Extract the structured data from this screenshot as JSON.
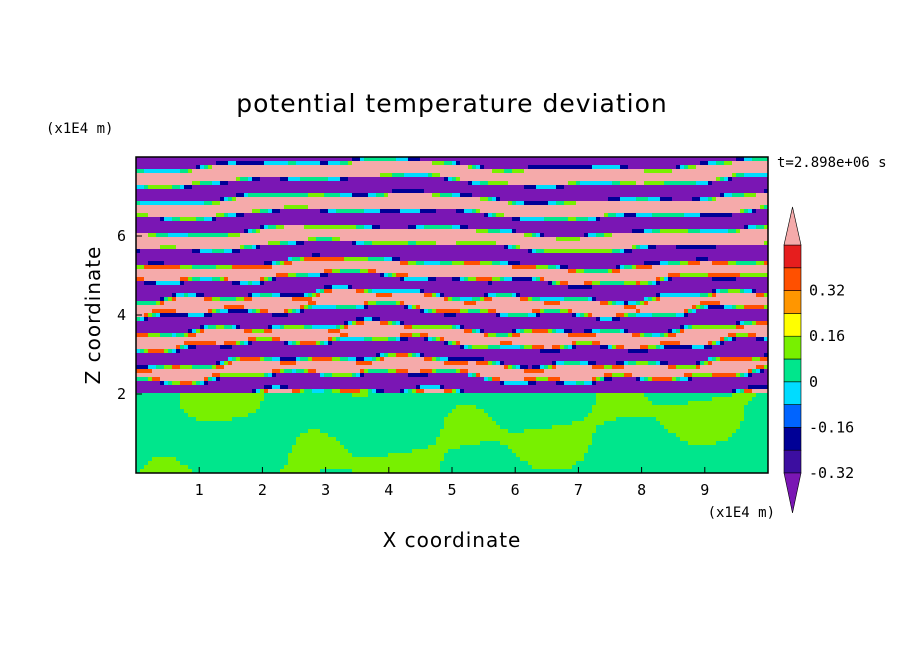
{
  "chart_data": {
    "type": "heatmap",
    "title": "potential temperature deviation",
    "xlabel": "X coordinate",
    "ylabel": "Z coordinate",
    "x_unit_label": "(x1E4 m)",
    "y_unit_label": "(x1E4 m)",
    "time_label": "t=2.898e+06 s",
    "xlim": [
      0,
      10
    ],
    "ylim": [
      0,
      8
    ],
    "x_ticks": [
      1,
      2,
      3,
      4,
      5,
      6,
      7,
      8,
      9
    ],
    "y_ticks": [
      2,
      4,
      6
    ],
    "colorbar": {
      "levels": [
        -0.4,
        -0.32,
        -0.24,
        -0.16,
        -0.08,
        0,
        0.08,
        0.16,
        0.24,
        0.32,
        0.4
      ],
      "labeled_ticks": [
        "0.32",
        "0.16",
        "0",
        "-0.16",
        "-0.32"
      ],
      "labeled_values": [
        0.32,
        0.16,
        0,
        -0.16,
        -0.32
      ],
      "colors_low_to_high": [
        "#7a16b4",
        "#3c0ea0",
        "#000096",
        "#0064ff",
        "#00dcff",
        "#00e68c",
        "#78f000",
        "#ffff00",
        "#ff9600",
        "#ff5000",
        "#e61e1e",
        "#f5aaaa"
      ],
      "extend": "both"
    },
    "field_description_regions": [
      {
        "z_range": [
          0,
          2
        ],
        "dominant_values": [
          0,
          0.08
        ]
      },
      {
        "z_range": [
          2,
          8
        ],
        "dominant_values": [
          -0.4,
          0.4
        ]
      }
    ]
  },
  "colors": {
    "frame": "#000000",
    "background": "#ffffff"
  }
}
